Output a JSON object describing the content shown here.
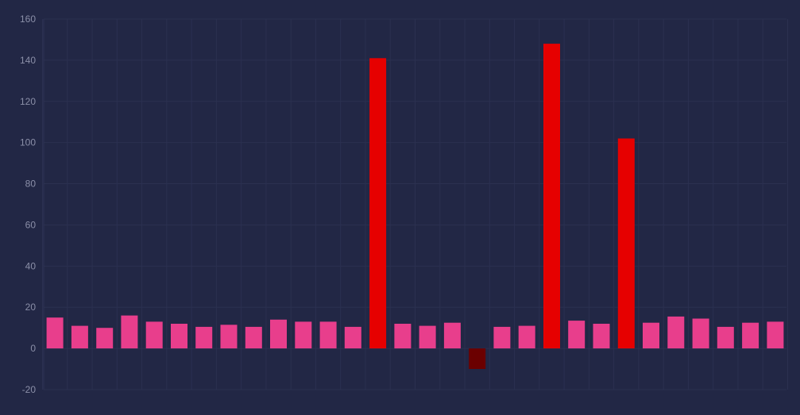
{
  "chart_data": {
    "type": "bar",
    "title": "",
    "xlabel": "",
    "ylabel": "",
    "ylim": [
      -20,
      160
    ],
    "yticks": [
      -20,
      0,
      20,
      40,
      60,
      80,
      100,
      120,
      140,
      160
    ],
    "grid": true,
    "legend": "none",
    "values": [
      15,
      11,
      10,
      16,
      13,
      12,
      10.5,
      11.5,
      10.5,
      14,
      13,
      13,
      10.5,
      141,
      12,
      11,
      12.5,
      -10,
      10.5,
      11,
      148,
      13.5,
      12,
      102,
      12.5,
      15.5,
      14.5,
      10.5,
      12.5,
      13
    ],
    "colors": {
      "normal": "#e83e8c",
      "spike": "#e60000",
      "negative": "#6b0000",
      "background": "#222745",
      "grid": "#2b3050",
      "tick_text": "#8b8fa8"
    }
  }
}
